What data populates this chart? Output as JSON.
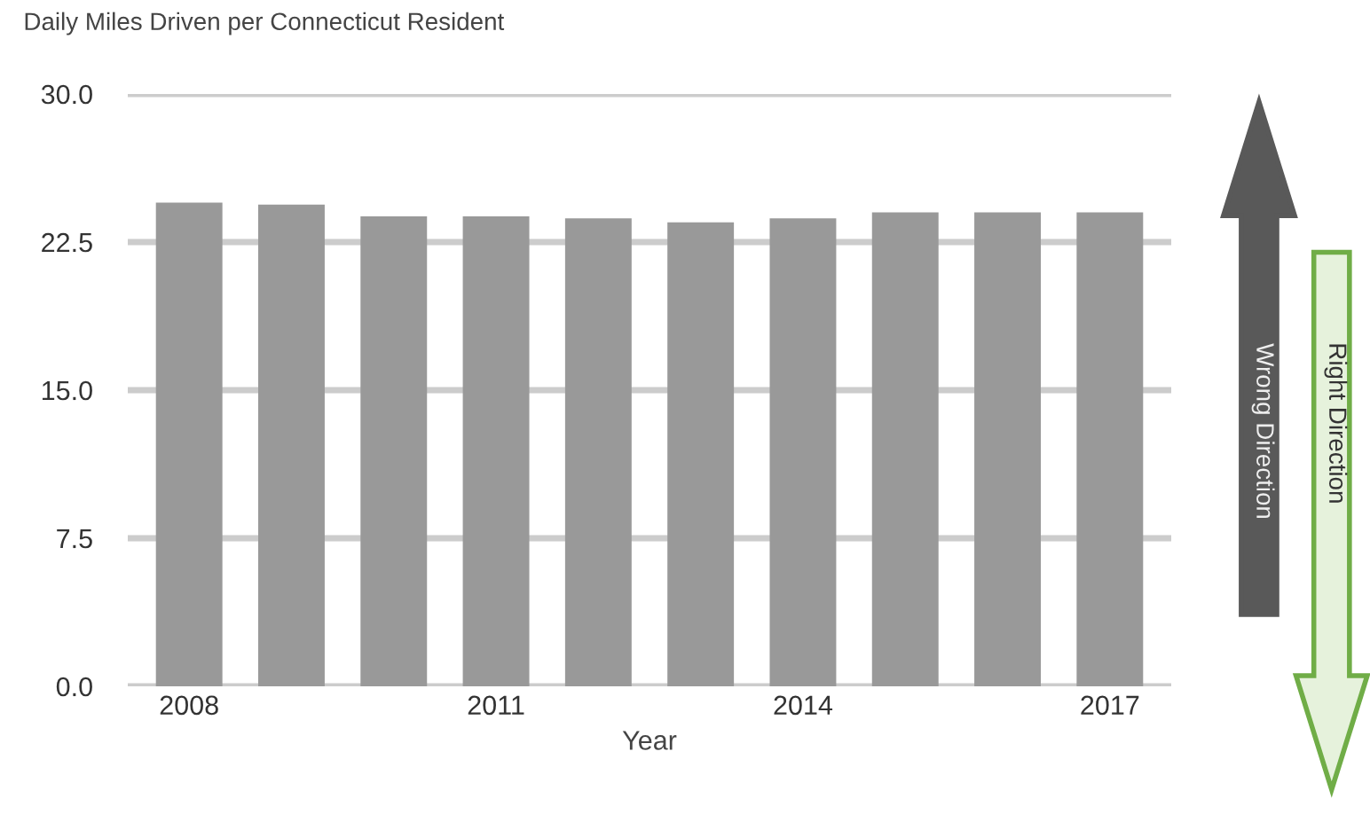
{
  "chart_data": {
    "type": "bar",
    "title": "Daily Miles Driven per Connecticut Resident",
    "xlabel": "Year",
    "categories": [
      "2008",
      null,
      null,
      "2011",
      null,
      null,
      "2014",
      null,
      null,
      "2017"
    ],
    "values": [
      24.5,
      24.4,
      23.8,
      23.8,
      23.7,
      23.5,
      23.7,
      24.0,
      24.0,
      24.0
    ],
    "color": "#999999",
    "ylim": [
      0,
      30
    ],
    "yticks": [
      {
        "value": 0,
        "label": "0.0"
      },
      {
        "value": 7.5,
        "label": "7.5"
      },
      {
        "value": 15,
        "label": "15.0"
      },
      {
        "value": 22.5,
        "label": "22.5"
      },
      {
        "value": 30,
        "label": "30.0"
      }
    ],
    "grid": "y",
    "annotations": [
      "Wrong Direction",
      "Right Direction"
    ]
  }
}
